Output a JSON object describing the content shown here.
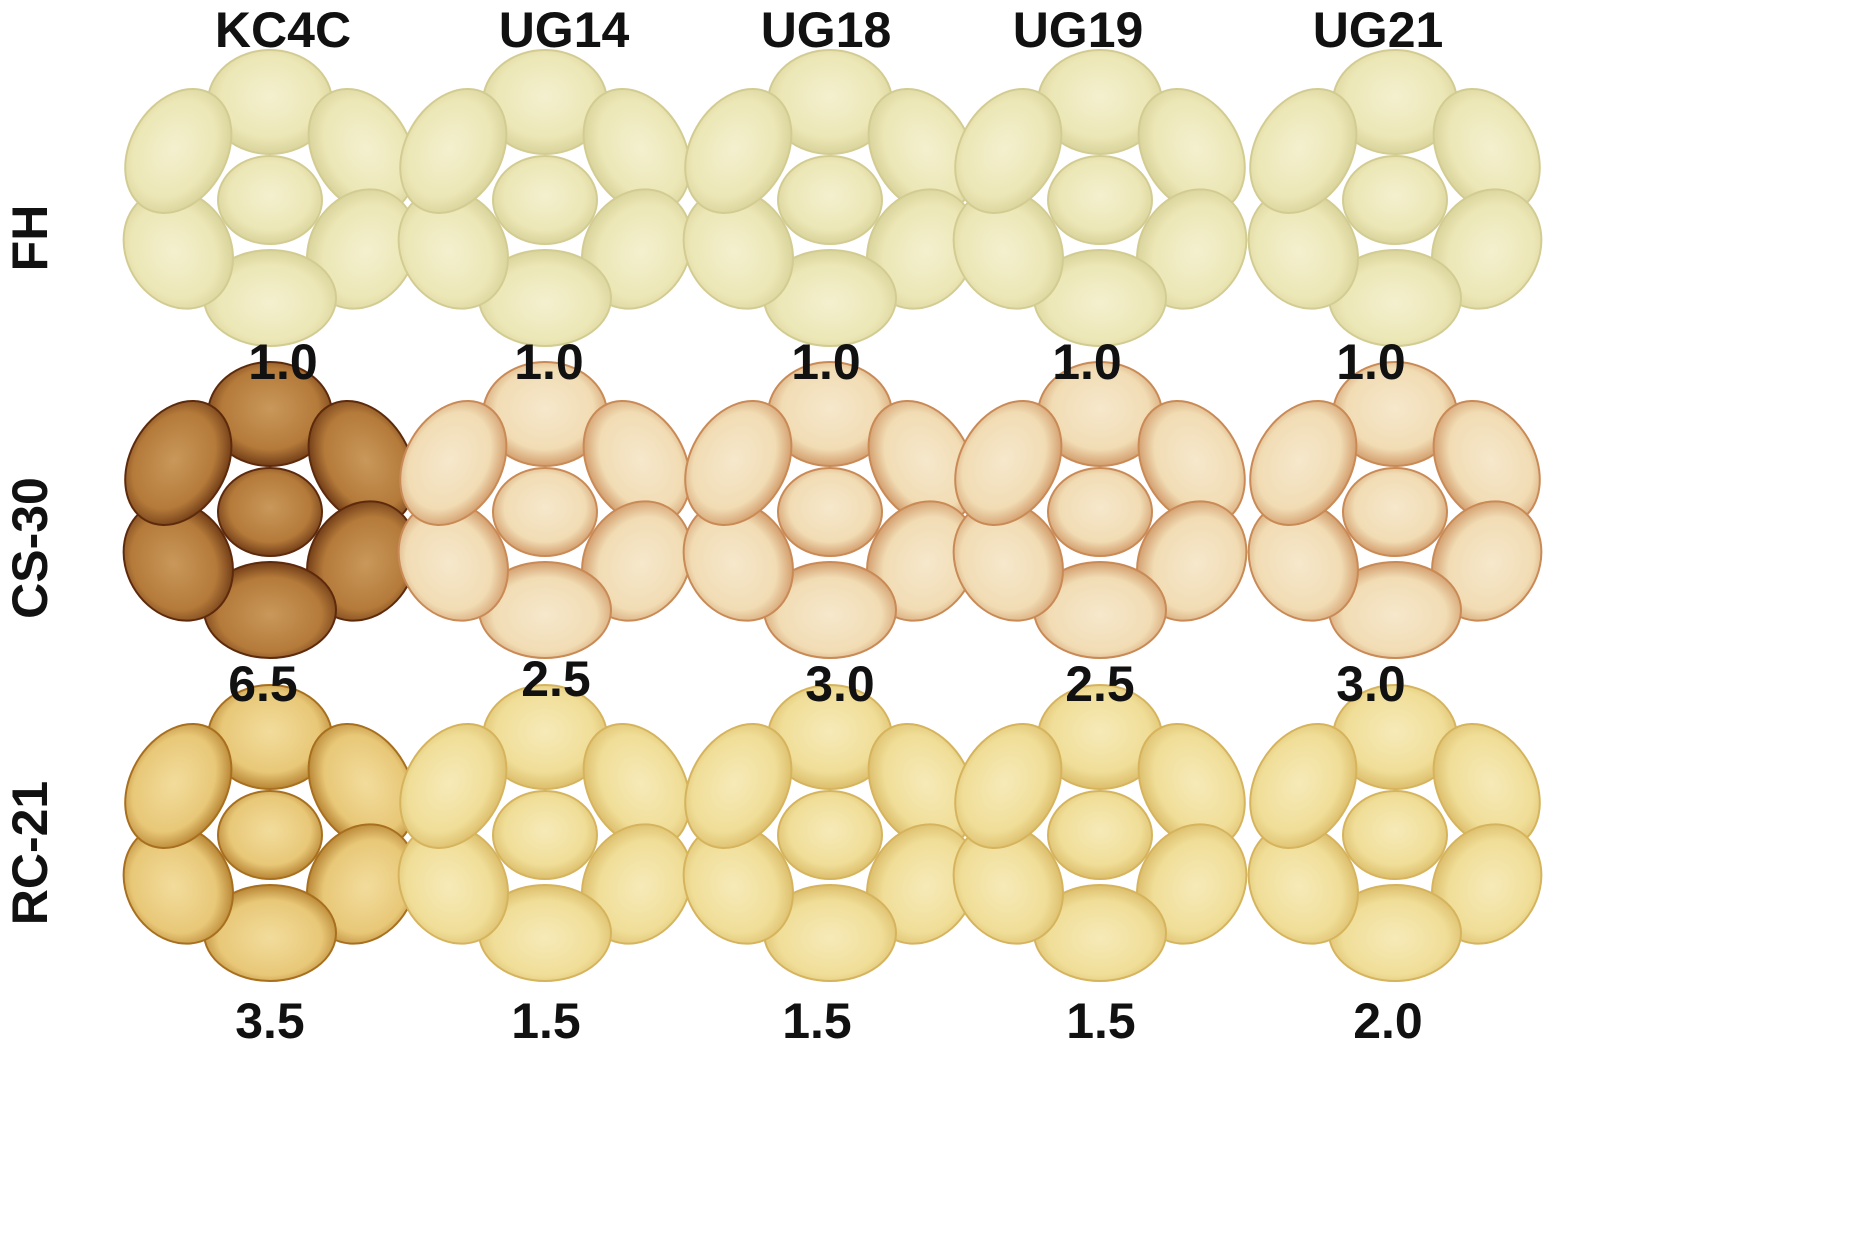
{
  "columns": [
    "KC4C",
    "UG14",
    "UG18",
    "UG19",
    "UG21"
  ],
  "rows": [
    {
      "label": "FH",
      "scores": [
        "1.0",
        "1.0",
        "1.0",
        "1.0",
        "1.0"
      ]
    },
    {
      "label": "CS-30",
      "scores": [
        "6.5",
        "2.5",
        "3.0",
        "2.5",
        "3.0"
      ]
    },
    {
      "label": "RC-21",
      "scores": [
        "3.5",
        "1.5",
        "1.5",
        "1.5",
        "2.0"
      ]
    }
  ],
  "chip_colors": {
    "FH": {
      "fill": "#ece7b6",
      "edge": "#d3cc92",
      "center": "#f4f0cf"
    },
    "CS-30": {
      "fill": "#f1dcb4",
      "edge": "#c98a56",
      "center": "#f6e8cc"
    },
    "CS-30-KC4C": {
      "fill": "#b47a3a",
      "edge": "#5e2a0c",
      "center": "#c9985a"
    },
    "RC-21": {
      "fill": "#f0de98",
      "edge": "#d6b45e",
      "center": "#f6eab8"
    },
    "RC-21-KC4C": {
      "fill": "#e8c878",
      "edge": "#a8701e",
      "center": "#f2dc9c"
    }
  }
}
